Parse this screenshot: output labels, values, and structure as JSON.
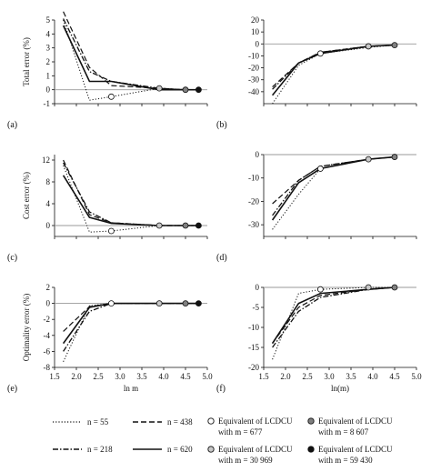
{
  "chart_data": [
    {
      "type": "line",
      "panel_label": "(a)",
      "ylabel": "Total error (%)",
      "xlabel": "",
      "xlim": [
        1.5,
        5.0
      ],
      "ylim": [
        -1,
        5
      ],
      "yticks": [
        -1,
        0,
        1,
        2,
        3,
        4,
        5
      ],
      "xticks": [],
      "series": [
        {
          "name": "n = 55",
          "x": [
            1.7,
            2.3,
            2.8,
            3.9,
            4.5,
            4.8
          ],
          "y": [
            5.0,
            -0.75,
            -0.5,
            0.1,
            0.0,
            0.0
          ]
        },
        {
          "name": "n = 438",
          "x": [
            1.7,
            2.3,
            2.8,
            3.9,
            4.5,
            4.8
          ],
          "y": [
            5.6,
            1.6,
            0.3,
            0.1,
            0.0,
            0.0
          ]
        },
        {
          "name": "n = 218",
          "x": [
            1.7,
            2.3,
            2.8,
            3.9,
            4.5,
            4.8
          ],
          "y": [
            5.1,
            1.3,
            0.6,
            0.1,
            0.0,
            0.0
          ]
        },
        {
          "name": "n = 620",
          "x": [
            1.7,
            2.3,
            2.8,
            3.9,
            4.5,
            4.8
          ],
          "y": [
            4.6,
            0.6,
            0.6,
            0.0,
            0.0,
            0.0
          ]
        }
      ],
      "markers": [
        {
          "kind": "white",
          "x": 2.8,
          "y": -0.5
        },
        {
          "kind": "light",
          "x": 3.9,
          "y": 0.1
        },
        {
          "kind": "gray",
          "x": 4.5,
          "y": 0.0
        },
        {
          "kind": "black",
          "x": 4.8,
          "y": 0.0
        }
      ]
    },
    {
      "type": "line",
      "panel_label": "(b)",
      "ylabel": "",
      "xlabel": "",
      "xlim": [
        1.5,
        5.0
      ],
      "ylim": [
        -50,
        20
      ],
      "yticks": [
        -40,
        -30,
        -20,
        -10,
        0,
        10,
        20
      ],
      "xticks": [],
      "series": [
        {
          "name": "n = 55",
          "x": [
            1.7,
            2.3,
            2.8,
            3.9,
            4.5
          ],
          "y": [
            -50,
            -18,
            -8,
            -3,
            -1
          ]
        },
        {
          "name": "n = 438",
          "x": [
            1.7,
            2.3,
            2.8,
            3.9,
            4.5
          ],
          "y": [
            -36,
            -16,
            -7,
            -2,
            -1
          ]
        },
        {
          "name": "n = 218",
          "x": [
            1.7,
            2.3,
            2.8,
            3.9,
            4.5
          ],
          "y": [
            -38,
            -16,
            -7,
            -2,
            -1
          ]
        },
        {
          "name": "n = 620",
          "x": [
            1.7,
            2.3,
            2.8,
            3.9,
            4.5
          ],
          "y": [
            -43,
            -16,
            -8,
            -2,
            -1
          ]
        }
      ],
      "markers": [
        {
          "kind": "white",
          "x": 2.8,
          "y": -8
        },
        {
          "kind": "light",
          "x": 3.9,
          "y": -2
        },
        {
          "kind": "gray",
          "x": 4.5,
          "y": -1
        }
      ]
    },
    {
      "type": "line",
      "panel_label": "(c)",
      "ylabel": "Cost error (%)",
      "xlabel": "",
      "xlim": [
        1.5,
        5.0
      ],
      "ylim": [
        -2,
        13
      ],
      "yticks": [
        0,
        4,
        8,
        12
      ],
      "xticks": [],
      "series": [
        {
          "name": "n = 55",
          "x": [
            1.7,
            2.3,
            2.8,
            3.9,
            4.5,
            4.8
          ],
          "y": [
            11.0,
            -1.2,
            -1.0,
            0.0,
            0.0,
            0.0
          ]
        },
        {
          "name": "n = 438",
          "x": [
            1.7,
            2.3,
            2.8,
            3.9,
            4.5,
            4.8
          ],
          "y": [
            12.0,
            2.0,
            0.5,
            0.0,
            0.0,
            0.0
          ]
        },
        {
          "name": "n = 218",
          "x": [
            1.7,
            2.3,
            2.8,
            3.9,
            4.5,
            4.8
          ],
          "y": [
            11.5,
            2.5,
            0.5,
            0.0,
            0.0,
            0.0
          ]
        },
        {
          "name": "n = 620",
          "x": [
            1.7,
            2.3,
            2.8,
            3.9,
            4.5,
            4.8
          ],
          "y": [
            9.2,
            1.5,
            0.4,
            0.0,
            0.0,
            0.0
          ]
        }
      ],
      "markers": [
        {
          "kind": "white",
          "x": 2.8,
          "y": -1.0
        },
        {
          "kind": "light",
          "x": 3.9,
          "y": 0.0
        },
        {
          "kind": "gray",
          "x": 4.5,
          "y": 0.0
        },
        {
          "kind": "black",
          "x": 4.8,
          "y": 0.0
        }
      ]
    },
    {
      "type": "line",
      "panel_label": "(d)",
      "ylabel": "",
      "xlabel": "",
      "xlim": [
        1.5,
        5.0
      ],
      "ylim": [
        -35,
        0
      ],
      "yticks": [
        -30,
        -20,
        -10,
        0
      ],
      "xticks": [],
      "series": [
        {
          "name": "n = 55",
          "x": [
            1.7,
            2.3,
            2.8,
            3.9,
            4.5
          ],
          "y": [
            -32,
            -17,
            -6,
            -2,
            -1
          ]
        },
        {
          "name": "n = 438",
          "x": [
            1.7,
            2.3,
            2.8,
            3.9,
            4.5
          ],
          "y": [
            -21,
            -11,
            -5,
            -2,
            -1
          ]
        },
        {
          "name": "n = 218",
          "x": [
            1.7,
            2.3,
            2.8,
            3.9,
            4.5
          ],
          "y": [
            -26,
            -11,
            -5,
            -2,
            -1
          ]
        },
        {
          "name": "n = 620",
          "x": [
            1.7,
            2.3,
            2.8,
            3.9,
            4.5
          ],
          "y": [
            -28,
            -12,
            -6,
            -2,
            -1
          ]
        }
      ],
      "markers": [
        {
          "kind": "white",
          "x": 2.8,
          "y": -6
        },
        {
          "kind": "light",
          "x": 3.9,
          "y": -2
        },
        {
          "kind": "gray",
          "x": 4.5,
          "y": -1
        }
      ]
    },
    {
      "type": "line",
      "panel_label": "(e)",
      "ylabel": "Optimality error (%)",
      "xlabel": "ln m",
      "xlim": [
        1.5,
        5.0
      ],
      "ylim": [
        -8,
        2
      ],
      "yticks": [
        -8,
        -6,
        -4,
        -2,
        0,
        2
      ],
      "xticks": [
        "1.5",
        "2.0",
        "2.5",
        "3.0",
        "3.5",
        "4.0",
        "4.5",
        "5.0"
      ],
      "series": [
        {
          "name": "n = 55",
          "x": [
            1.7,
            2.3,
            2.8,
            3.9,
            4.5,
            4.8
          ],
          "y": [
            -7.3,
            -0.3,
            0.0,
            0.0,
            0.0,
            0.0
          ]
        },
        {
          "name": "n = 438",
          "x": [
            1.7,
            2.3,
            2.8,
            3.9,
            4.5,
            4.8
          ],
          "y": [
            -3.5,
            -0.4,
            0.0,
            0.0,
            0.0,
            0.0
          ]
        },
        {
          "name": "n = 218",
          "x": [
            1.7,
            2.3,
            2.8,
            3.9,
            4.5,
            4.8
          ],
          "y": [
            -6.0,
            -1.0,
            0.0,
            0.0,
            0.0,
            0.0
          ]
        },
        {
          "name": "n = 620",
          "x": [
            1.7,
            2.3,
            2.8,
            3.9,
            4.5,
            4.8
          ],
          "y": [
            -5.0,
            -0.5,
            0.0,
            0.0,
            0.0,
            0.0
          ]
        }
      ],
      "markers": [
        {
          "kind": "white",
          "x": 2.8,
          "y": 0.0
        },
        {
          "kind": "light",
          "x": 3.9,
          "y": 0.0
        },
        {
          "kind": "gray",
          "x": 4.5,
          "y": 0.0
        },
        {
          "kind": "black",
          "x": 4.8,
          "y": 0.0
        }
      ]
    },
    {
      "type": "line",
      "panel_label": "(f)",
      "ylabel": "",
      "xlabel": "ln(m)",
      "xlim": [
        1.5,
        5.0
      ],
      "ylim": [
        -20,
        0
      ],
      "yticks": [
        -20,
        -15,
        -10,
        -5,
        0
      ],
      "xticks": [
        "1.5",
        "2.0",
        "2.5",
        "3.0",
        "3.5",
        "4.0",
        "4.5",
        "5.0"
      ],
      "series": [
        {
          "name": "n = 55",
          "x": [
            1.7,
            2.3,
            2.8,
            3.9,
            4.5
          ],
          "y": [
            -18,
            -1.5,
            -0.5,
            0.0,
            0.0
          ]
        },
        {
          "name": "n = 438",
          "x": [
            1.7,
            2.3,
            2.8,
            3.9,
            4.5
          ],
          "y": [
            -14,
            -5,
            -2,
            -0.5,
            0.0
          ]
        },
        {
          "name": "n = 218",
          "x": [
            1.7,
            2.3,
            2.8,
            3.9,
            4.5
          ],
          "y": [
            -15,
            -6,
            -2.5,
            -0.5,
            0.0
          ]
        },
        {
          "name": "n = 620",
          "x": [
            1.7,
            2.3,
            2.8,
            3.9,
            4.5
          ],
          "y": [
            -14,
            -4,
            -1.5,
            -0.5,
            0.0
          ]
        }
      ],
      "markers": [
        {
          "kind": "white",
          "x": 2.8,
          "y": -0.5
        },
        {
          "kind": "light",
          "x": 3.9,
          "y": 0.0
        },
        {
          "kind": "gray",
          "x": 4.5,
          "y": 0.0
        }
      ]
    }
  ],
  "legend": {
    "lines": [
      {
        "label": "n = 55",
        "style": "dotted"
      },
      {
        "label": "n = 438",
        "style": "dashed"
      },
      {
        "label": "n = 218",
        "style": "dashdot"
      },
      {
        "label": "n = 620",
        "style": "solid"
      }
    ],
    "markers": [
      {
        "kind": "white",
        "line1": "Equivalent of LCDCU",
        "line2": "with m = 677"
      },
      {
        "kind": "gray",
        "line1": "Equivalent of LCDCU",
        "line2": "with m = 8 607"
      },
      {
        "kind": "light",
        "line1": "Equivalent of LCDCU",
        "line2": "with m = 30 969"
      },
      {
        "kind": "black",
        "line1": "Equivalent of LCDCU",
        "line2": "with m = 59 430"
      }
    ]
  },
  "colors": {
    "line": "#111111",
    "zero_line": "#9a9a9a",
    "marker_white": "#ffffff",
    "marker_light": "#c8c8c8",
    "marker_gray": "#808080",
    "marker_black": "#111111"
  }
}
